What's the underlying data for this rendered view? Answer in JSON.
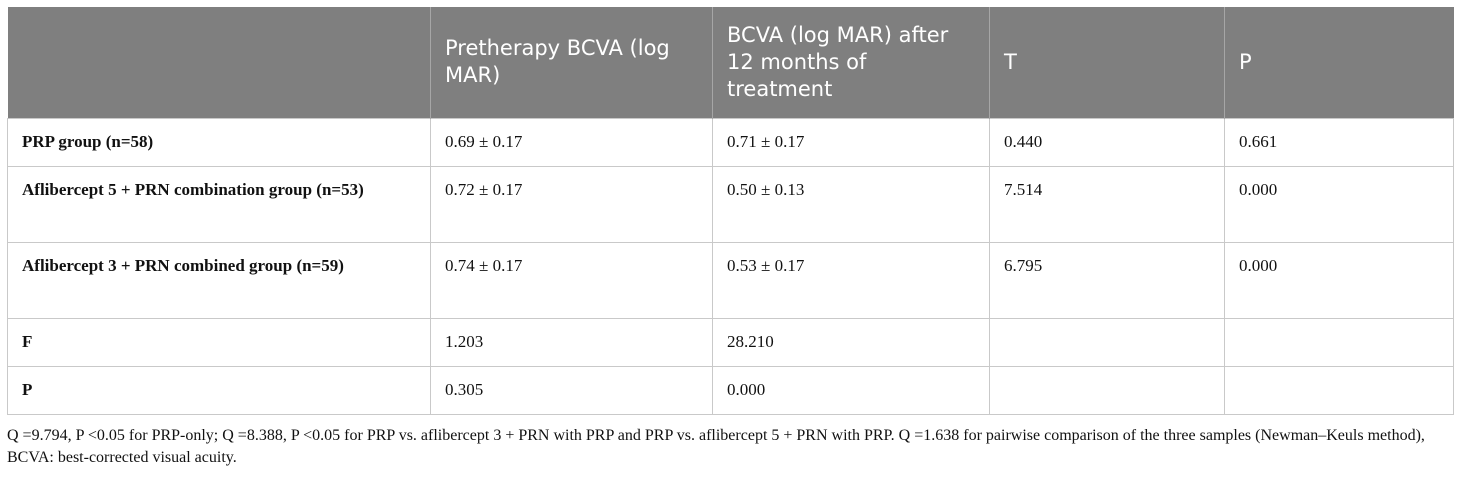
{
  "table": {
    "headers": [
      "",
      "Pretherapy BCVA (log MAR)",
      "BCVA (log MAR) after 12 months of treatment",
      "T",
      "P"
    ],
    "rows": [
      [
        "PRP group (n=58)",
        "0.69 ± 0.17",
        "0.71 ± 0.17",
        "0.440",
        "0.661"
      ],
      [
        "Aflibercept 5 + PRN combination group (n=53)",
        "0.72 ± 0.17",
        "0.50 ± 0.13",
        "7.514",
        "0.000"
      ],
      [
        "Aflibercept 3 + PRN combined group (n=59)",
        "0.74 ± 0.17",
        "0.53 ± 0.17",
        "6.795",
        "0.000"
      ],
      [
        "F",
        "1.203",
        "28.210",
        "",
        ""
      ],
      [
        "P",
        "0.305",
        "0.000",
        "",
        ""
      ]
    ]
  },
  "footnote": "Q =9.794, P <0.05 for PRP-only; Q =8.388, P <0.05 for PRP vs. aflibercept 3 + PRN with PRP and PRP vs. aflibercept 5 + PRN with PRP. Q =1.638 for pairwise comparison of the three samples (Newman–Keuls method), BCVA: best-corrected visual acuity.",
  "colors": {
    "header_bg": "#7f7f7f",
    "header_text": "#ffffff",
    "grid": "#c9c9c9"
  }
}
